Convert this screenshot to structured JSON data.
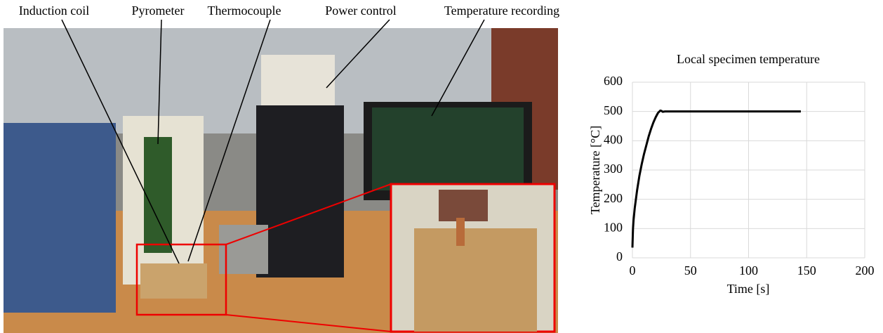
{
  "annotations": [
    "Induction coil",
    "Pyrometer",
    "Thermocouple",
    "Power control",
    "Temperature recording"
  ],
  "chart_data": {
    "type": "line",
    "title": "Local specimen temperature",
    "x_label": "Time [s]",
    "y_label": "Temperature [°C]",
    "x": [
      0,
      0.5,
      1,
      2,
      4,
      6,
      8,
      10,
      12,
      14,
      16,
      18,
      20,
      22,
      24,
      25,
      26,
      28,
      30,
      40,
      60,
      80,
      100,
      120,
      145
    ],
    "values": [
      35,
      100,
      130,
      170,
      230,
      280,
      320,
      355,
      385,
      415,
      440,
      462,
      480,
      495,
      503,
      502,
      499,
      500,
      500,
      500,
      500,
      500,
      500,
      500,
      500
    ],
    "color": "#000000",
    "xlim": [
      0,
      200
    ],
    "xticks": [
      0,
      50,
      100,
      150,
      200
    ],
    "ylim": [
      0,
      600
    ],
    "yticks": [
      0,
      100,
      200,
      300,
      400,
      500,
      600
    ],
    "grid": true
  }
}
